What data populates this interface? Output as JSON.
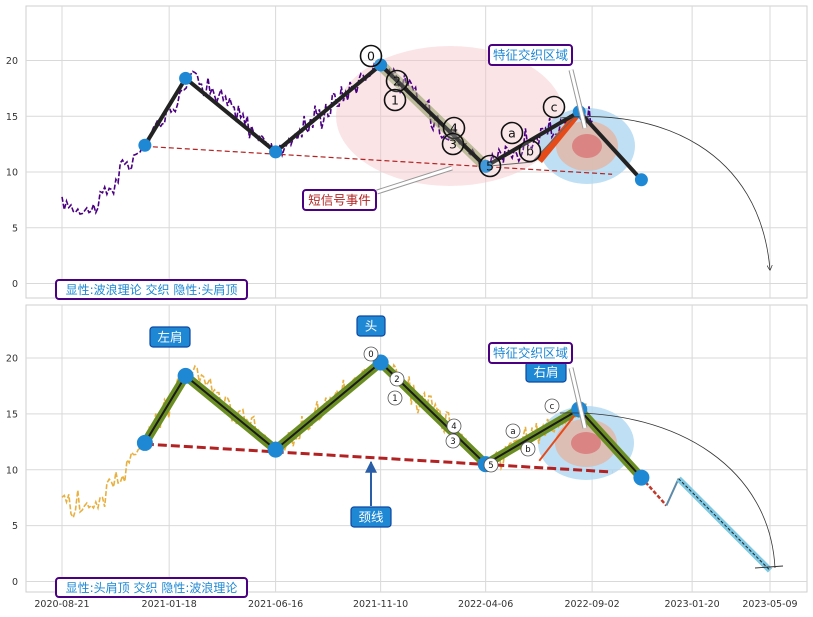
{
  "chart_data": [
    {
      "type": "line",
      "panel": "top",
      "ylim": [
        -1,
        24.5
      ],
      "yticks": [
        0,
        5,
        10,
        15,
        20
      ],
      "wave_points": [
        {
          "date": "2020-12-15",
          "y": 12.4
        },
        {
          "date": "2021-02-10",
          "y": 18.4
        },
        {
          "date": "2021-06-16",
          "y": 11.8
        },
        {
          "date": "2021-11-10",
          "y": 19.6
        },
        {
          "date": "2022-04-06",
          "y": 10.5
        },
        {
          "date": "2022-08-15",
          "y": 15.4
        },
        {
          "date": "2022-11-10",
          "y": 9.3
        }
      ],
      "sub_labels": [
        "0",
        "2",
        "1",
        "4",
        "3",
        "5",
        "a",
        "c",
        "b"
      ],
      "annotations": {
        "short_signal": "短信号事件",
        "feature_zone": "特征交织区域"
      },
      "caption": "显性:波浪理论 交织 隐性:头肩顶"
    },
    {
      "type": "line",
      "panel": "bottom",
      "ylim": [
        -1,
        24.5
      ],
      "yticks": [
        0,
        5,
        10,
        15,
        20
      ],
      "hs_points": [
        {
          "date": "2020-12-15",
          "y": 12.4
        },
        {
          "date": "2021-02-10",
          "y": 18.4
        },
        {
          "date": "2021-06-16",
          "y": 11.8
        },
        {
          "date": "2021-11-10",
          "y": 19.6
        },
        {
          "date": "2022-04-06",
          "y": 10.5
        },
        {
          "date": "2022-08-15",
          "y": 15.4
        },
        {
          "date": "2022-11-10",
          "y": 9.3
        }
      ],
      "projection": [
        {
          "date": "2022-11-10",
          "y": 9.3
        },
        {
          "date": "2022-12-15",
          "y": 6.8
        },
        {
          "date": "2023-01-01",
          "y": 9.2
        },
        {
          "date": "2023-05-09",
          "y": 1.0
        }
      ],
      "sub_labels": [
        "0",
        "2",
        "1",
        "4",
        "3",
        "5",
        "a",
        "c",
        "b"
      ],
      "labels": {
        "left_shoulder": "左肩",
        "head": "头",
        "right_shoulder": "右肩",
        "neckline": "颈线",
        "feature_zone": "特征交织区域"
      },
      "caption": "显性:头肩顶 交织 隐性:波浪理论"
    }
  ],
  "x_axis": {
    "tick_labels": [
      "2020-08-21",
      "2021-01-18",
      "2021-06-16",
      "2021-11-10",
      "2022-04-06",
      "2022-09-02",
      "2023-01-20",
      "2023-05-09"
    ]
  },
  "colors": {
    "top_series": "#4b0082",
    "bottom_series": "#e8b040",
    "marker": "#1e88d4",
    "wave_line": "#222222",
    "hs_line": "#6b8e23",
    "neckline": "#b22222",
    "highlight": "#e64a19",
    "label_box": "#1e88d4",
    "caption_border": "#4b0082",
    "caption_text": "#1e88d4"
  }
}
